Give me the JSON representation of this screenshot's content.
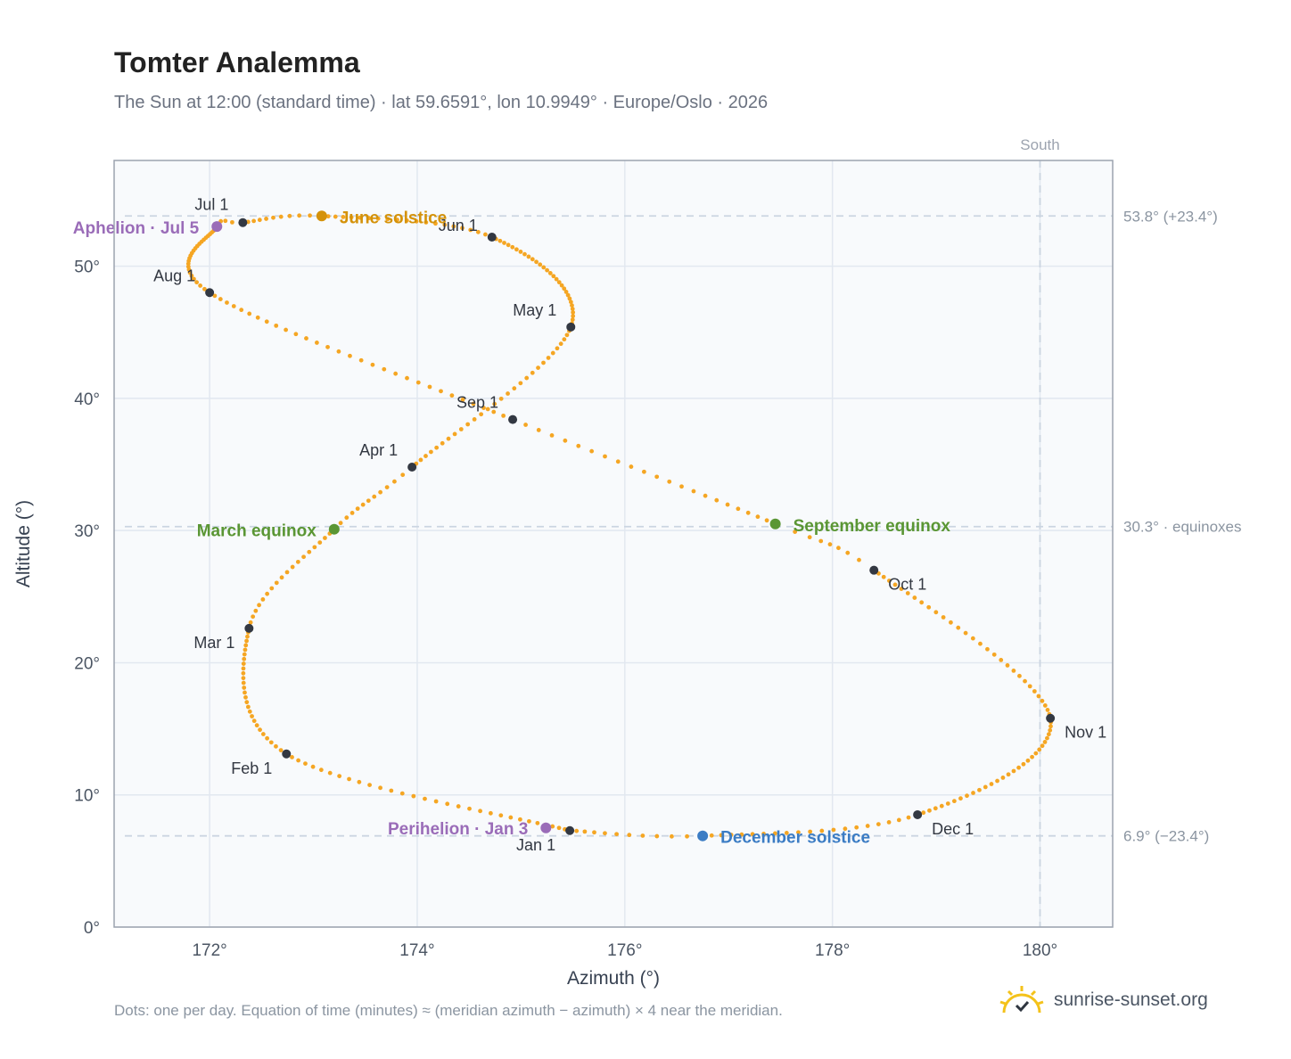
{
  "title": "Tomter Analemma",
  "subtitle": "The Sun at 12:00 (standard time) · lat 59.6591°, lon 10.9949° · Europe/Oslo · 2026",
  "footnote": "Dots: one per day. Equation of time (minutes) ≈ (meridian azimuth − azimuth) × 4 near the meridian.",
  "brand": {
    "name": "sunrise-sunset.org",
    "icon": "sun-check-icon"
  },
  "colors": {
    "path": "#f5a623",
    "month_dot": "#333842",
    "solstice_june": "#d4920a",
    "solstice_december": "#3b7cc4",
    "equinox": "#5a9634",
    "apsis": "#9a6cb8",
    "plot_bg": "#f8fafc",
    "grid": "#e2e8f0",
    "reference_line": "#cbd5e1",
    "frame": "#9ca3af"
  },
  "chart_data": {
    "type": "scatter",
    "xlabel": "Azimuth (°)",
    "ylabel": "Altitude (°)",
    "xlim": [
      171.08,
      180.7
    ],
    "ylim": [
      0,
      58
    ],
    "xticks": [
      172,
      174,
      176,
      178,
      180
    ],
    "xtick_labels": [
      "172°",
      "174°",
      "176°",
      "178°",
      "180°"
    ],
    "yticks": [
      0,
      10,
      20,
      30,
      40,
      50
    ],
    "ytick_labels": [
      "0°",
      "10°",
      "20°",
      "30°",
      "40°",
      "50°"
    ],
    "grid": true,
    "meridian": {
      "azimuth": 180,
      "label": "South"
    },
    "reference_lines": [
      {
        "altitude": 53.8,
        "label": "53.8° (+23.4°)"
      },
      {
        "altitude": 30.3,
        "label": "30.3° · equinoxes"
      },
      {
        "altitude": 6.9,
        "label": "6.9° (−23.4°)"
      }
    ],
    "month_markers": [
      {
        "label": "Jan 1",
        "azimuth": 175.47,
        "altitude": 7.3
      },
      {
        "label": "Feb 1",
        "azimuth": 172.74,
        "altitude": 13.1
      },
      {
        "label": "Mar 1",
        "azimuth": 172.38,
        "altitude": 22.6
      },
      {
        "label": "Apr 1",
        "azimuth": 173.95,
        "altitude": 34.8
      },
      {
        "label": "May 1",
        "azimuth": 175.48,
        "altitude": 45.4
      },
      {
        "label": "Jun 1",
        "azimuth": 174.72,
        "altitude": 52.2
      },
      {
        "label": "Jul 1",
        "azimuth": 172.32,
        "altitude": 53.3
      },
      {
        "label": "Aug 1",
        "azimuth": 172.0,
        "altitude": 48.0
      },
      {
        "label": "Sep 1",
        "azimuth": 174.92,
        "altitude": 38.4
      },
      {
        "label": "Oct 1",
        "azimuth": 178.4,
        "altitude": 27.0
      },
      {
        "label": "Nov 1",
        "azimuth": 180.1,
        "altitude": 15.8
      },
      {
        "label": "Dec 1",
        "azimuth": 178.82,
        "altitude": 8.5
      }
    ],
    "events": [
      {
        "label": "June solstice",
        "azimuth": 173.08,
        "altitude": 53.8,
        "kind": "solstice_june"
      },
      {
        "label": "December solstice",
        "azimuth": 176.75,
        "altitude": 6.9,
        "kind": "solstice_december"
      },
      {
        "label": "March equinox",
        "azimuth": 173.2,
        "altitude": 30.1,
        "kind": "equinox"
      },
      {
        "label": "September equinox",
        "azimuth": 177.45,
        "altitude": 30.5,
        "kind": "equinox"
      },
      {
        "label": "Perihelion · Jan 3",
        "azimuth": 175.24,
        "altitude": 7.5,
        "kind": "apsis"
      },
      {
        "label": "Aphelion · Jul 5",
        "azimuth": 172.07,
        "altitude": 53.0,
        "kind": "apsis"
      }
    ],
    "path_keypoints": [
      [
        1,
        175.47,
        7.3
      ],
      [
        32,
        172.74,
        13.1
      ],
      [
        60,
        172.38,
        22.6
      ],
      [
        79,
        173.2,
        30.1
      ],
      [
        91,
        173.95,
        34.8
      ],
      [
        121,
        175.48,
        45.4
      ],
      [
        152,
        174.72,
        52.2
      ],
      [
        172,
        173.08,
        53.8
      ],
      [
        182,
        172.32,
        53.3
      ],
      [
        186,
        172.07,
        53.0
      ],
      [
        213,
        172.0,
        48.0
      ],
      [
        244,
        174.92,
        38.4
      ],
      [
        266,
        177.45,
        30.5
      ],
      [
        274,
        178.4,
        27.0
      ],
      [
        305,
        180.1,
        15.8
      ],
      [
        335,
        178.82,
        8.5
      ],
      [
        355,
        176.75,
        6.9
      ],
      [
        366,
        175.47,
        7.3
      ]
    ]
  }
}
